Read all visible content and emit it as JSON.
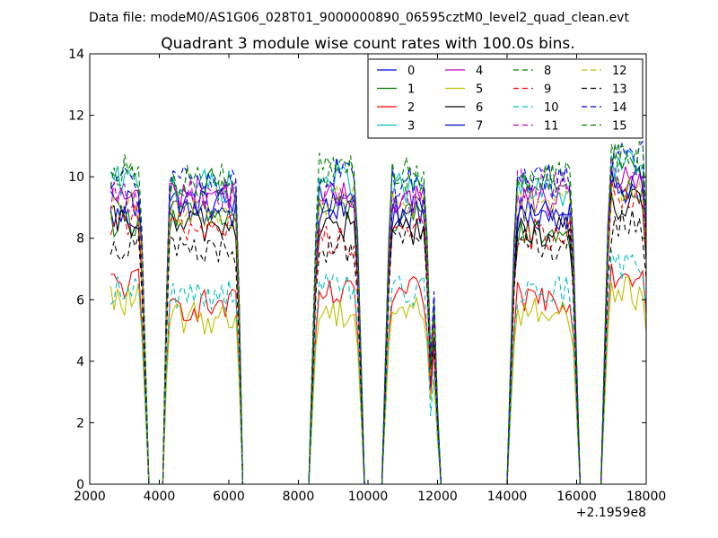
{
  "header": {
    "data_file": "Data file: modeM0/AS1G06_028T01_9000000890_06595cztM0_level2_quad_clean.evt"
  },
  "chart_data": {
    "type": "line",
    "title": "Quadrant 3 module wise count rates with 100.0s bins.",
    "xlabel": "",
    "ylabel": "",
    "xlim": [
      2000,
      18000
    ],
    "ylim": [
      0,
      14
    ],
    "x_offset_label": "+2.1959e8",
    "x_ticks": [
      2000,
      4000,
      6000,
      8000,
      10000,
      12000,
      14000,
      16000,
      18000
    ],
    "x_tick_labels": [
      "2000",
      "4000",
      "6000",
      "8000",
      "10000",
      "12000",
      "14000",
      "16000",
      "18000"
    ],
    "y_ticks": [
      0,
      2,
      4,
      6,
      8,
      10,
      12,
      14
    ],
    "y_tick_labels": [
      "0",
      "2",
      "4",
      "6",
      "8",
      "10",
      "12",
      "14"
    ],
    "bin_seconds": 100,
    "x_start": 2600,
    "x_end": 18000,
    "legend_position": "top-right",
    "legend_columns": 4,
    "series": [
      {
        "name": "0",
        "color": "#0000ff",
        "dash": "solid",
        "levels": [
          8.7,
          9.2,
          9.3,
          8.8,
          8.8,
          9.6
        ]
      },
      {
        "name": "1",
        "color": "#008000",
        "dash": "solid",
        "levels": [
          8.6,
          8.7,
          8.9,
          8.6,
          8.2,
          9.5
        ]
      },
      {
        "name": "2",
        "color": "#ff0000",
        "dash": "solid",
        "levels": [
          6.5,
          5.8,
          6.1,
          6.2,
          6.1,
          6.9
        ]
      },
      {
        "name": "3",
        "color": "#00bfbf",
        "dash": "solid",
        "levels": [
          9.8,
          9.7,
          9.9,
          9.6,
          9.5,
          10.4
        ]
      },
      {
        "name": "4",
        "color": "#bf00bf",
        "dash": "solid",
        "levels": [
          9.4,
          9.5,
          9.3,
          9.3,
          9.2,
          10.0
        ]
      },
      {
        "name": "5",
        "color": "#bfbf00",
        "dash": "solid",
        "levels": [
          6.0,
          5.4,
          5.6,
          5.7,
          5.6,
          6.2
        ]
      },
      {
        "name": "6",
        "color": "#000000",
        "dash": "solid",
        "levels": [
          8.5,
          8.4,
          8.4,
          8.3,
          8.2,
          9.1
        ]
      },
      {
        "name": "7",
        "color": "#0000bf",
        "dash": "solid",
        "levels": [
          9.0,
          8.9,
          9.0,
          8.9,
          8.8,
          9.8
        ]
      },
      {
        "name": "8",
        "color": "#008000",
        "dash": "dashed",
        "levels": [
          10.2,
          9.9,
          10.3,
          10.1,
          10.0,
          10.6
        ]
      },
      {
        "name": "9",
        "color": "#ff0000",
        "dash": "dashed",
        "levels": [
          8.6,
          8.4,
          8.0,
          8.3,
          8.1,
          9.4
        ]
      },
      {
        "name": "10",
        "color": "#00bfbf",
        "dash": "dashed",
        "levels": [
          6.3,
          6.2,
          6.4,
          6.3,
          6.3,
          7.1
        ]
      },
      {
        "name": "11",
        "color": "#bf00bf",
        "dash": "dashed",
        "levels": [
          9.3,
          9.4,
          9.2,
          9.3,
          9.7,
          10.1
        ]
      },
      {
        "name": "12",
        "color": "#bfbf00",
        "dash": "dashed",
        "levels": [
          9.0,
          8.8,
          9.3,
          9.2,
          9.1,
          9.7
        ]
      },
      {
        "name": "13",
        "color": "#000000",
        "dash": "dashed",
        "levels": [
          7.8,
          7.6,
          7.7,
          7.9,
          7.8,
          8.4
        ]
      },
      {
        "name": "14",
        "color": "#0000ff",
        "dash": "dashed",
        "levels": [
          9.9,
          9.8,
          10.1,
          9.9,
          9.9,
          10.6
        ]
      },
      {
        "name": "15",
        "color": "#008000",
        "dash": "dashed",
        "levels": [
          10.4,
          9.7,
          10.1,
          10.0,
          9.9,
          10.6
        ]
      }
    ],
    "active_intervals": [
      [
        2600,
        3450
      ],
      [
        4300,
        6200
      ],
      [
        8550,
        9650
      ],
      [
        10650,
        11650
      ],
      [
        14250,
        15850
      ],
      [
        16950,
        17950
      ]
    ],
    "gaps": [
      [
        3800,
        4050
      ],
      [
        6450,
        8350
      ],
      [
        9850,
        10450
      ],
      [
        12200,
        14050
      ],
      [
        16050,
        16750
      ]
    ]
  }
}
